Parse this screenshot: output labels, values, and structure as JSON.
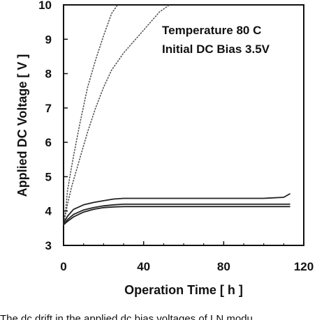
{
  "chart_data": {
    "type": "line",
    "xlabel": "Operation Time [ h ]",
    "ylabel": "Applied DC Voltage [ V ]",
    "xlim": [
      0,
      120
    ],
    "ylim": [
      3,
      10
    ],
    "xticks": [
      0,
      40,
      80,
      120
    ],
    "yticks": [
      3,
      4,
      5,
      6,
      7,
      8,
      9,
      10
    ],
    "grid": false,
    "annotations": [
      "Temperature  80 C",
      "Initial DC Bias 3.5V"
    ],
    "series": [
      {
        "style": "dotted",
        "color": "#555555",
        "x": [
          0,
          1,
          2,
          3,
          5,
          8,
          12,
          16,
          20,
          24,
          27
        ],
        "y": [
          3.6,
          4.0,
          4.6,
          4.95,
          5.6,
          6.5,
          7.6,
          8.4,
          9.1,
          9.75,
          10.0
        ]
      },
      {
        "style": "dotted",
        "color": "#555555",
        "x": [
          0,
          2,
          4,
          8,
          12,
          16,
          20,
          24,
          30,
          36,
          42,
          48,
          53
        ],
        "y": [
          3.6,
          4.2,
          4.7,
          5.5,
          6.3,
          7.0,
          7.6,
          8.1,
          8.6,
          9.0,
          9.4,
          9.8,
          10.0
        ]
      },
      {
        "style": "solid",
        "color": "#222222",
        "x": [
          0,
          2,
          5,
          10,
          15,
          20,
          25,
          30,
          40,
          60,
          80,
          100,
          110,
          113
        ],
        "y": [
          3.65,
          3.85,
          4.05,
          4.18,
          4.25,
          4.3,
          4.35,
          4.37,
          4.37,
          4.37,
          4.37,
          4.37,
          4.4,
          4.5
        ]
      },
      {
        "style": "solid",
        "color": "#222222",
        "x": [
          0,
          2,
          5,
          10,
          15,
          20,
          25,
          30,
          40,
          60,
          80,
          100,
          113
        ],
        "y": [
          3.6,
          3.75,
          3.9,
          4.03,
          4.1,
          4.15,
          4.18,
          4.2,
          4.2,
          4.2,
          4.2,
          4.2,
          4.2
        ]
      },
      {
        "style": "solid",
        "color": "#222222",
        "x": [
          0,
          2,
          5,
          10,
          15,
          20,
          25,
          30,
          40,
          60,
          80,
          100,
          113
        ],
        "y": [
          3.6,
          3.7,
          3.83,
          3.97,
          4.05,
          4.1,
          4.12,
          4.13,
          4.13,
          4.13,
          4.13,
          4.13,
          4.13
        ]
      }
    ]
  },
  "caption": "The dc drift in the applied dc bias voltages of LN modu"
}
